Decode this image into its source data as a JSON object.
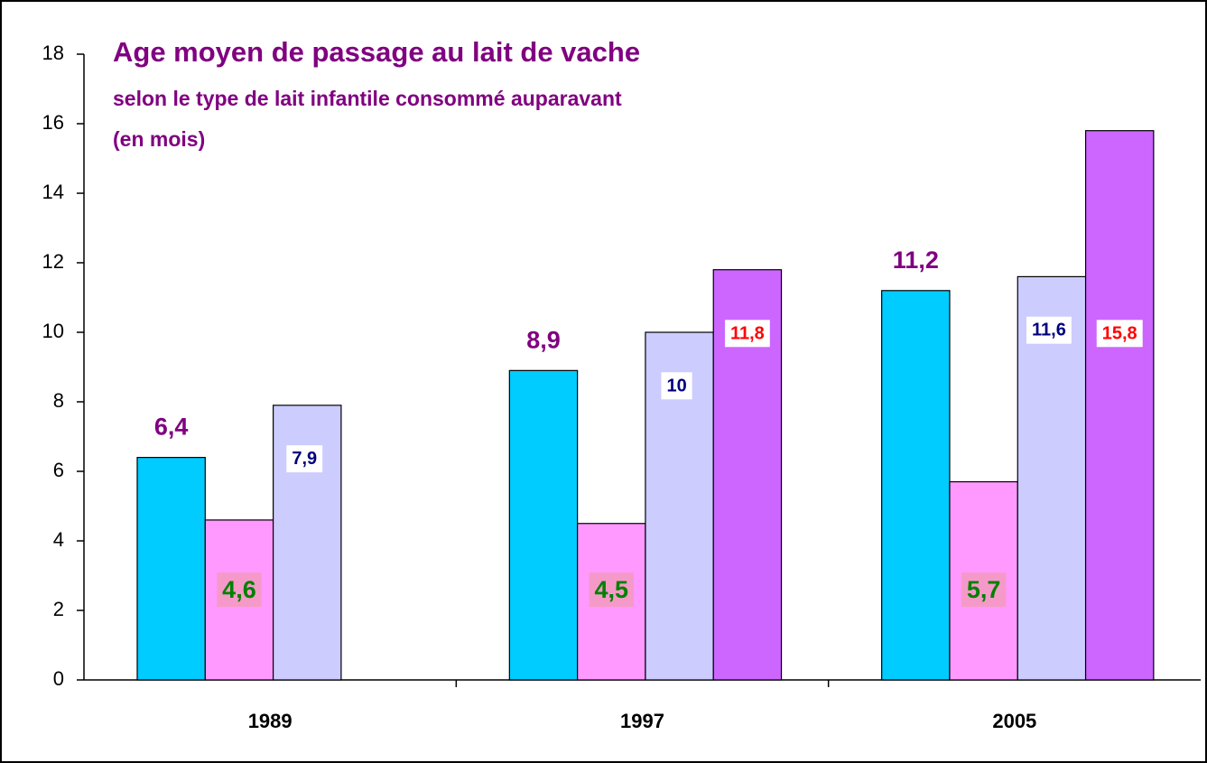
{
  "chart_data": {
    "type": "bar",
    "title": "Age moyen de passage au lait de vache",
    "subtitle": "selon le type de lait infantile consommé auparavant",
    "unit_note": "(en mois)",
    "categories": [
      "1989",
      "1997",
      "2005"
    ],
    "series": [
      {
        "color": "#00ccff",
        "values": [
          6.4,
          8.9,
          11.2
        ],
        "value_labels": [
          "6,4",
          "8,9",
          "11,2"
        ]
      },
      {
        "color": "#ff99ff",
        "values": [
          4.6,
          4.5,
          5.7
        ],
        "value_labels": [
          "4,6",
          "4,5",
          "5,7"
        ]
      },
      {
        "color": "#ccccff",
        "values": [
          7.9,
          10,
          11.6
        ],
        "value_labels": [
          "7,9",
          "10",
          "11,6"
        ]
      },
      {
        "color": "#cc66ff",
        "values": [
          null,
          11.8,
          15.8
        ],
        "value_labels": [
          null,
          "11,8",
          "15,8"
        ]
      }
    ],
    "ylim": [
      0,
      18
    ],
    "yticks": [
      0,
      2,
      4,
      6,
      8,
      10,
      12,
      14,
      16,
      18
    ]
  }
}
